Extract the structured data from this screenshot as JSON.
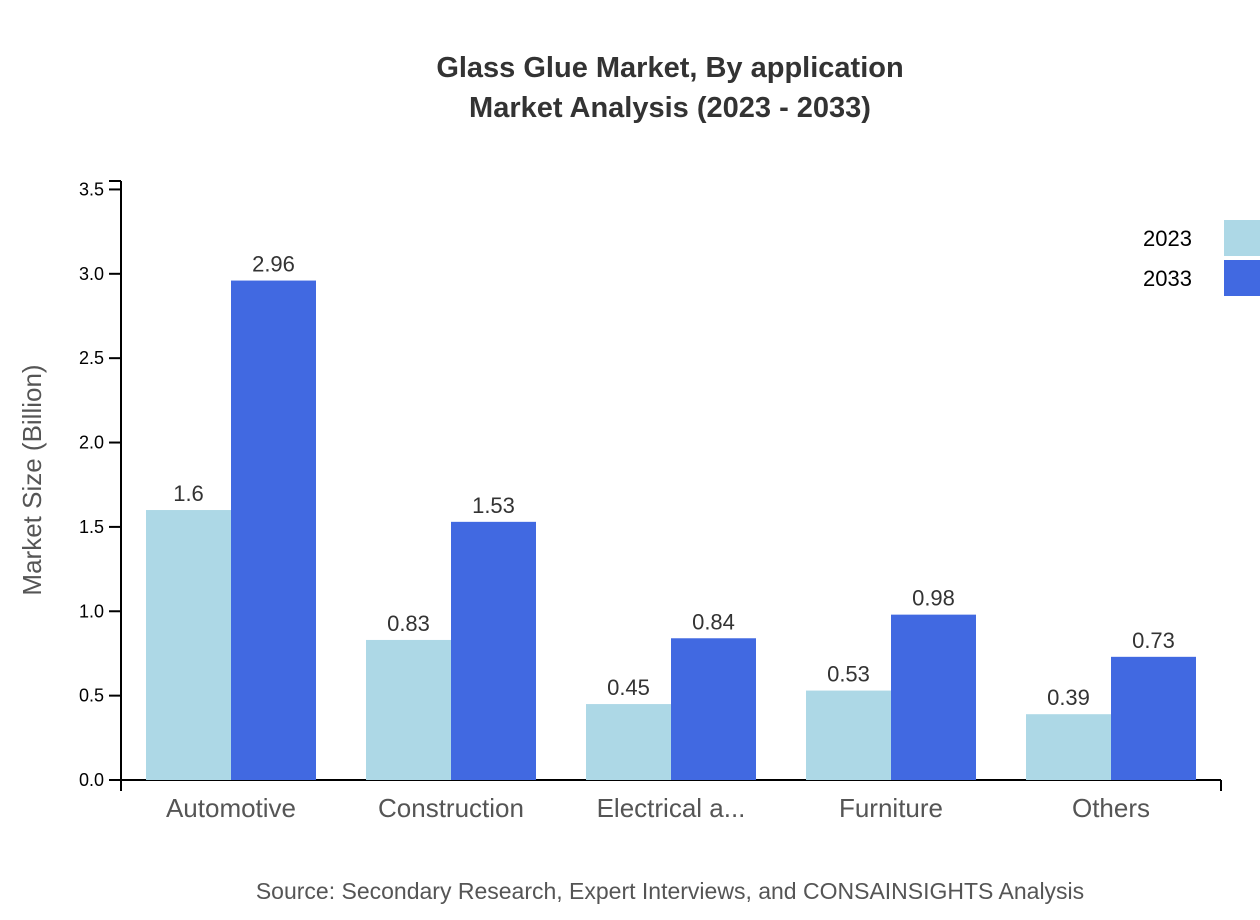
{
  "chart_data": {
    "type": "bar",
    "title": "Glass Glue Market, By application",
    "subtitle": "Market Analysis (2023 - 2033)",
    "xlabel": "",
    "ylabel": "Market Size (Billion)",
    "ylim": [
      0,
      3.55
    ],
    "yticks": [
      "0.0",
      "0.5",
      "1.0",
      "1.5",
      "2.0",
      "2.5",
      "3.0",
      "3.5"
    ],
    "categories": [
      "Automotive",
      "Construction",
      "Electrical a...",
      "Furniture",
      "Others"
    ],
    "series": [
      {
        "name": "2023",
        "color": "#add8e6",
        "values": [
          1.6,
          0.83,
          0.45,
          0.53,
          0.39
        ],
        "labels": [
          "1.6",
          "0.83",
          "0.45",
          "0.53",
          "0.39"
        ]
      },
      {
        "name": "2033",
        "color": "#4169e1",
        "values": [
          2.96,
          1.53,
          0.84,
          0.98,
          0.73
        ],
        "labels": [
          "2.96",
          "1.53",
          "0.84",
          "0.98",
          "0.73"
        ]
      }
    ],
    "legend": "top-right",
    "grid": false
  },
  "source": "Source: Secondary Research, Expert Interviews, and CONSAINSIGHTS Analysis"
}
